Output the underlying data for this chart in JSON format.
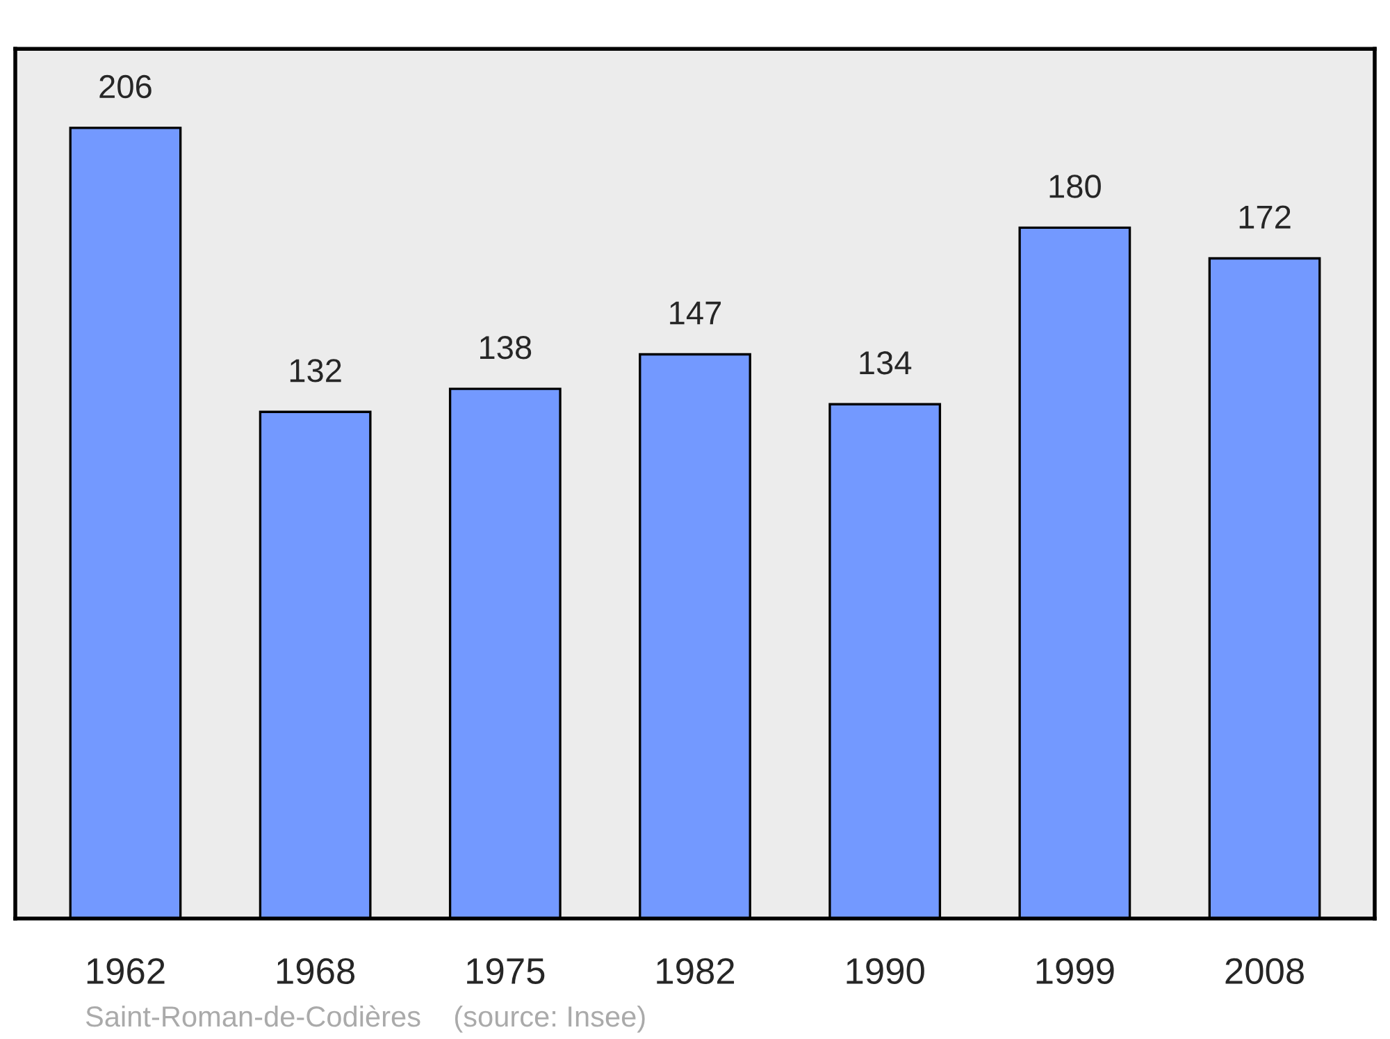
{
  "chart_data": {
    "type": "bar",
    "categories": [
      "1962",
      "1968",
      "1975",
      "1982",
      "1990",
      "1999",
      "2008"
    ],
    "values": [
      206,
      132,
      138,
      147,
      134,
      180,
      172
    ],
    "color": "#7399ff",
    "data_labels": true,
    "tick_labels": "x",
    "grid": false,
    "legend": false,
    "annotations": [
      "Saint-Roman-de-Codières    (source: Insee)"
    ]
  }
}
